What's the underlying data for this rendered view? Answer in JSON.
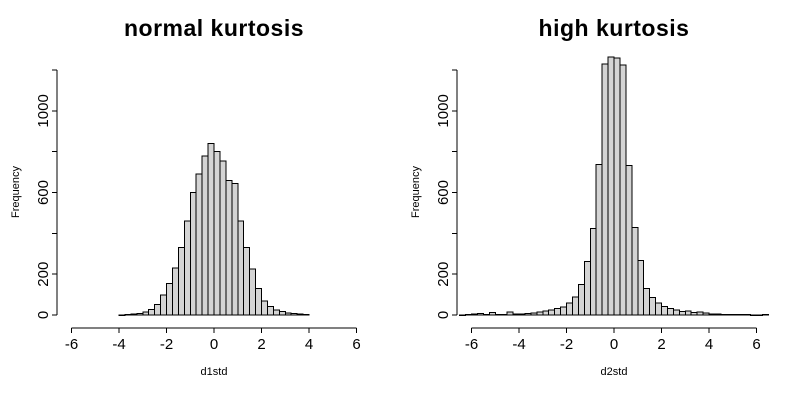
{
  "figure": {
    "background": "#ffffff",
    "bar_fill": "#d4d4d4",
    "bar_stroke": "#000000",
    "axis_color": "#000000"
  },
  "chart_data": [
    {
      "type": "bar",
      "subtype": "histogram",
      "title": "normal kurtosis",
      "xlabel": "d1std",
      "ylabel": "Frequency",
      "bin_start": -4.0,
      "bin_width": 0.25,
      "counts": [
        1,
        2,
        4,
        7,
        14,
        28,
        52,
        98,
        155,
        230,
        330,
        460,
        600,
        690,
        780,
        840,
        800,
        755,
        660,
        645,
        460,
        330,
        225,
        130,
        68,
        42,
        24,
        16,
        10,
        8,
        4,
        2
      ],
      "x_ticks": [
        -6,
        -4,
        -2,
        0,
        2,
        4,
        6
      ],
      "y_ticks": [
        0,
        200,
        400,
        600,
        800,
        1000,
        1200
      ],
      "y_tick_labels": [
        "0",
        "200",
        "",
        "600",
        "",
        "1000",
        ""
      ],
      "xlim": [
        -6.5,
        6.5
      ],
      "ylim": [
        0,
        1270
      ],
      "grid": false,
      "legend": null
    },
    {
      "type": "bar",
      "subtype": "histogram",
      "title": "high kurtosis",
      "xlabel": "d2std",
      "ylabel": "Frequency",
      "bin_start": -6.5,
      "bin_width": 0.25,
      "counts": [
        1,
        2,
        5,
        8,
        2,
        13,
        3,
        2,
        14,
        4,
        6,
        8,
        11,
        15,
        19,
        24,
        31,
        40,
        58,
        88,
        150,
        263,
        423,
        737,
        1230,
        1265,
        1260,
        1225,
        732,
        428,
        268,
        130,
        85,
        60,
        42,
        32,
        24,
        16,
        20,
        12,
        14,
        10,
        6,
        4,
        3,
        3,
        2,
        2,
        2,
        1,
        1,
        2
      ],
      "x_ticks": [
        -6,
        -4,
        -2,
        0,
        2,
        4,
        6
      ],
      "y_ticks": [
        0,
        200,
        400,
        600,
        800,
        1000,
        1200
      ],
      "y_tick_labels": [
        "0",
        "200",
        "",
        "600",
        "",
        "1000",
        ""
      ],
      "xlim": [
        -6.5,
        6.5
      ],
      "ylim": [
        0,
        1270
      ],
      "grid": false,
      "legend": null
    }
  ]
}
